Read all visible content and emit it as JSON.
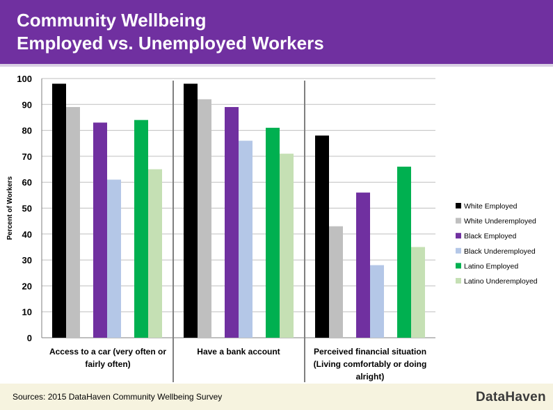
{
  "header": {
    "title_line1": "Community Wellbeing",
    "title_line2": "Employed vs. Unemployed Workers"
  },
  "footer": {
    "source": "Sources: 2015 DataHaven Community Wellbeing Survey",
    "logo_text": "DataHaven"
  },
  "colors": {
    "header_bg": "#7030a0",
    "footer_bg": "#f6f3df"
  },
  "chart_data": {
    "type": "bar",
    "ylabel": "Percent of Workers",
    "xlabel": "",
    "ylim": [
      0,
      100
    ],
    "yticks": [
      0,
      10,
      20,
      30,
      40,
      50,
      60,
      70,
      80,
      90,
      100
    ],
    "grid": true,
    "legend_position": "right",
    "categories": [
      [
        "Access to a car (very often or",
        "fairly often)"
      ],
      [
        "Have a bank account"
      ],
      [
        "Perceived financial situation",
        "(Living comfortably or doing",
        "alright)"
      ]
    ],
    "series": [
      {
        "name": "White Employed",
        "color": "#000000",
        "values": [
          98,
          98,
          78
        ]
      },
      {
        "name": "White Underemployed",
        "color": "#bfbfbf",
        "values": [
          89,
          92,
          43
        ]
      },
      {
        "name": "Black Employed",
        "color": "#7030a0",
        "values": [
          83,
          89,
          56
        ]
      },
      {
        "name": "Black Underemployed",
        "color": "#b4c7e7",
        "values": [
          61,
          76,
          28
        ]
      },
      {
        "name": "Latino Employed",
        "color": "#00b050",
        "values": [
          84,
          81,
          66
        ]
      },
      {
        "name": "Latino Underemployed",
        "color": "#c5e0b4",
        "values": [
          65,
          71,
          35
        ]
      }
    ]
  }
}
